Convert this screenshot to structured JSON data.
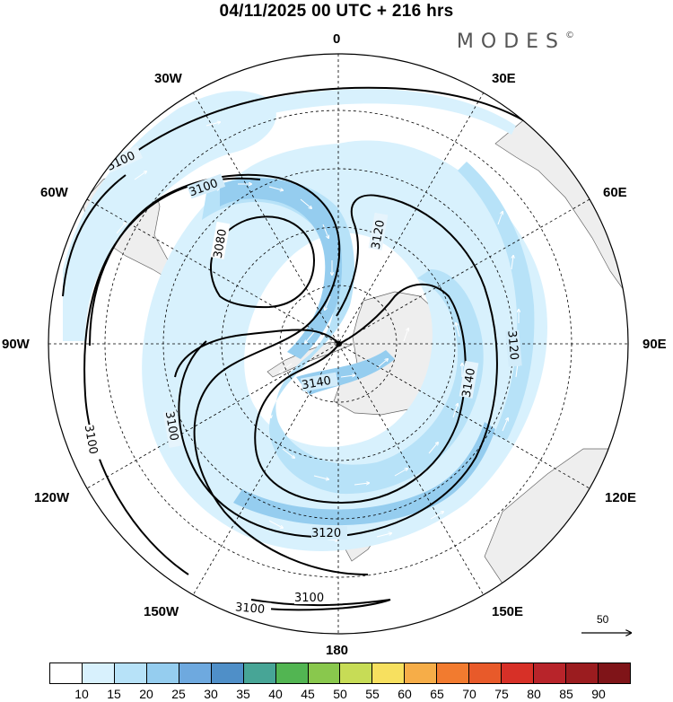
{
  "title": "04/11/2025  00 UTC  + 216 hrs",
  "brand": "MODES",
  "brand_mark": "©",
  "longitude_labels": {
    "lon_0": "0",
    "lon_30e": "30E",
    "lon_60e": "60E",
    "lon_90e": "90E",
    "lon_120e": "120E",
    "lon_150e": "150E",
    "lon_180": "180",
    "lon_150w": "150W",
    "lon_120w": "120W",
    "lon_90w": "90W",
    "lon_60w": "60W",
    "lon_30w": "30W"
  },
  "contour_labels": {
    "c1": "3100",
    "c2": "3100",
    "c3": "3080",
    "c4": "3120",
    "c5": "3120",
    "c6": "3140",
    "c7": "3140",
    "c8": "3100",
    "c9": "3100",
    "c10": "3120",
    "c11": "3100",
    "c12": "3100"
  },
  "vector_reference": {
    "label": "50"
  },
  "colorbar": {
    "ticks": [
      "10",
      "15",
      "20",
      "25",
      "30",
      "35",
      "40",
      "45",
      "50",
      "55",
      "60",
      "65",
      "70",
      "75",
      "80",
      "85",
      "90"
    ],
    "colors": [
      "#ffffff",
      "#d8f1fd",
      "#b7e2f8",
      "#95cdef",
      "#6ea9df",
      "#4f8fc8",
      "#47a596",
      "#52b552",
      "#89c84d",
      "#c7dc56",
      "#f7e05f",
      "#f6ad48",
      "#f27b2f",
      "#e85a2a",
      "#d73027",
      "#b8242a",
      "#9b1c1f",
      "#7f1418"
    ]
  },
  "colors": {
    "land": "#eeeeee",
    "contour": "#000000",
    "wind_light": "#d8f1fd",
    "wind_mid": "#b7e2f8",
    "wind_strong": "#95cdef"
  }
}
